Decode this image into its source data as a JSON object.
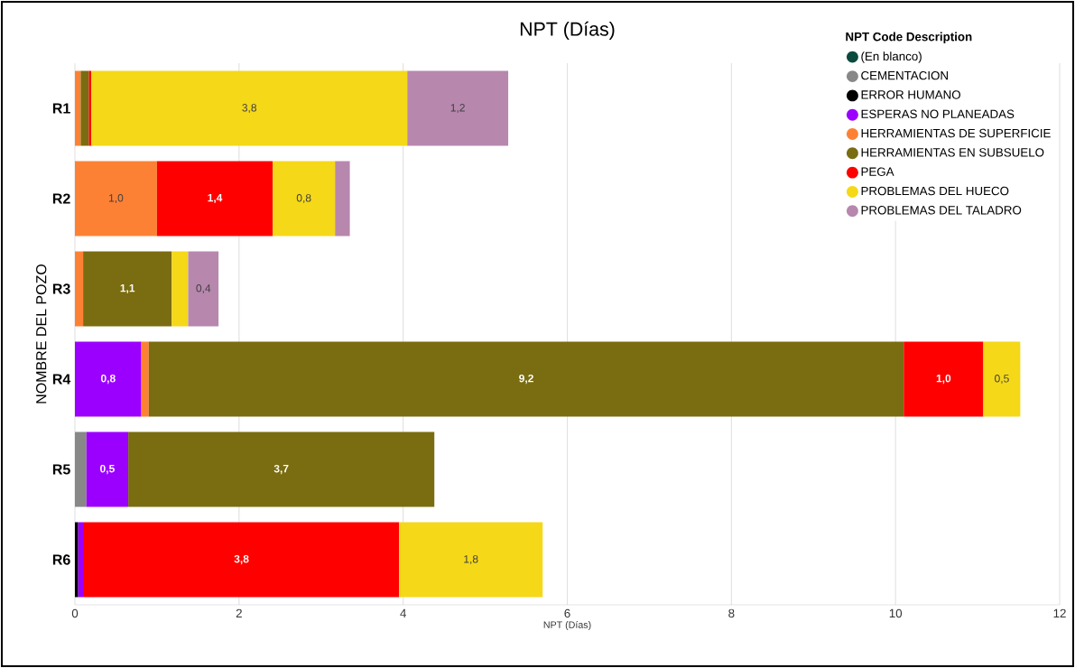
{
  "chart_data": {
    "type": "bar",
    "orientation": "horizontal",
    "stacked": true,
    "title": "NPT (Días)",
    "xlabel": "NPT (Días)",
    "ylabel": "NOMBRE DEL POZO",
    "legend_title": "NPT Code Description",
    "legend": "top right",
    "marker": "circle",
    "grid": "x",
    "categories": [
      "R1",
      "R2",
      "R3",
      "R4",
      "R5",
      "R6"
    ],
    "xlim": [
      0,
      12
    ],
    "xticks": [
      0,
      2,
      4,
      6,
      8,
      10,
      12
    ],
    "series": [
      {
        "name": "(En blanco)",
        "color": "#0b4a3e",
        "values": [
          null,
          null,
          null,
          null,
          null,
          null
        ]
      },
      {
        "name": "CEMENTACION",
        "color": "#888888",
        "values": [
          null,
          null,
          null,
          null,
          0.14,
          null
        ]
      },
      {
        "name": "ERROR HUMANO",
        "color": "#000000",
        "values": [
          null,
          null,
          null,
          null,
          null,
          0.04
        ]
      },
      {
        "name": "ESPERAS NO PLANEADAS",
        "color": "#9b00ff",
        "values": [
          null,
          null,
          null,
          0.81,
          0.51,
          0.07
        ],
        "value_labels": [
          null,
          null,
          null,
          "0,8",
          "0,5",
          null
        ]
      },
      {
        "name": "HERRAMIENTAS DE SUPERFICIE",
        "color": "#fd8134",
        "values": [
          0.07,
          1.0,
          0.1,
          0.09,
          null,
          null
        ],
        "value_labels": [
          null,
          "1,0",
          null,
          null,
          null,
          null
        ]
      },
      {
        "name": "HERRAMIENTAS EN SUBSUELO",
        "color": "#7a6c10",
        "values": [
          0.1,
          null,
          1.08,
          9.2,
          3.73,
          null
        ],
        "value_labels": [
          null,
          null,
          "1,1",
          "9,2",
          "3,7",
          null
        ]
      },
      {
        "name": "PEGA",
        "color": "#ff0000",
        "values": [
          0.03,
          1.41,
          null,
          0.97,
          null,
          3.84
        ],
        "value_labels": [
          null,
          "1,4",
          null,
          "1,0",
          null,
          "3,8"
        ]
      },
      {
        "name": "PROBLEMAS DEL HUECO",
        "color": "#f5d818",
        "values": [
          3.85,
          0.76,
          0.2,
          0.45,
          null,
          1.75
        ],
        "value_labels": [
          "3,8",
          "0,8",
          null,
          "0,5",
          null,
          "1,8"
        ]
      },
      {
        "name": "PROBLEMAS DEL TALADRO",
        "color": "#b787ae",
        "values": [
          1.23,
          0.18,
          0.37,
          null,
          null,
          null
        ],
        "value_labels": [
          "1,2",
          null,
          "0,4",
          null,
          null,
          null
        ]
      }
    ]
  }
}
